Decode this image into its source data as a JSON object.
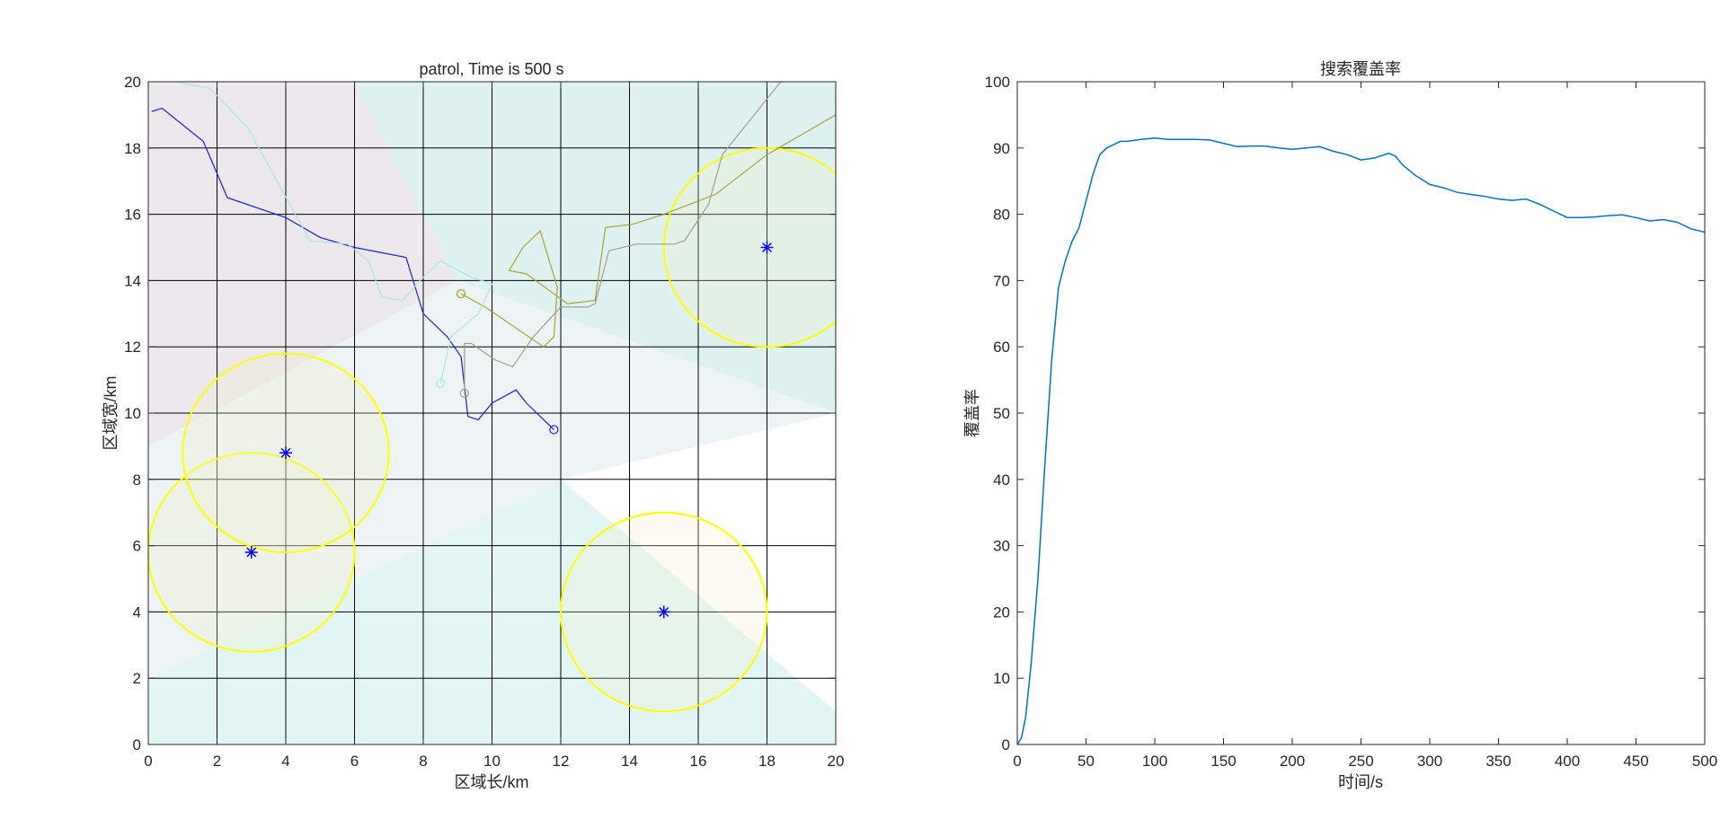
{
  "chart_data": [
    {
      "type": "scatter",
      "title": "patrol, Time is 500 s",
      "xlabel": "区域长/km",
      "ylabel": "区域宽/km",
      "xlim": [
        0,
        20
      ],
      "ylim": [
        0,
        20
      ],
      "xticks": [
        "0",
        "2",
        "4",
        "6",
        "8",
        "10",
        "12",
        "14",
        "16",
        "18",
        "20"
      ],
      "yticks": [
        "0",
        "2",
        "4",
        "6",
        "8",
        "10",
        "12",
        "14",
        "16",
        "18",
        "20"
      ],
      "grid": true,
      "background_regions": [
        {
          "color": "#ece8ec",
          "points": [
            [
              0,
              20
            ],
            [
              6,
              20
            ],
            [
              9,
              14
            ],
            [
              0,
              9
            ]
          ]
        },
        {
          "color": "#dff2f2",
          "points": [
            [
              6,
              20
            ],
            [
              20,
              20
            ],
            [
              20,
              10
            ],
            [
              9,
              14
            ]
          ]
        },
        {
          "color": "#eef4f4",
          "points": [
            [
              0,
              9
            ],
            [
              9,
              14
            ],
            [
              20,
              10
            ],
            [
              12,
              8
            ],
            [
              0,
              2
            ]
          ]
        },
        {
          "color": "#e3f6f6",
          "points": [
            [
              0,
              2
            ],
            [
              12,
              8
            ],
            [
              20,
              1
            ],
            [
              20,
              0
            ],
            [
              0,
              0
            ]
          ]
        }
      ],
      "targets": [
        {
          "x": 3,
          "y": 5.8,
          "r": 3
        },
        {
          "x": 4,
          "y": 8.8,
          "r": 3
        },
        {
          "x": 15,
          "y": 4,
          "r": 3
        },
        {
          "x": 18,
          "y": 15,
          "r": 3
        }
      ],
      "target_color": "#0000ff",
      "circle_color": "#ffff00",
      "series": [
        {
          "color": "#1f1fcf",
          "end_marker": true,
          "x": [
            0.1,
            0.4,
            1.6,
            2.3,
            4,
            5,
            6,
            7.5,
            8,
            8.7,
            9.1,
            9.3,
            9.6,
            10,
            10.7,
            11,
            11.8
          ],
          "y": [
            19.1,
            19.2,
            18.2,
            16.5,
            15.9,
            15.3,
            15,
            14.7,
            13,
            12.3,
            11.7,
            9.9,
            9.8,
            10.3,
            10.7,
            10.3,
            9.5
          ]
        },
        {
          "color": "#a6a03a",
          "end_marker": true,
          "x": [
            20,
            18,
            16.5,
            15,
            14.1,
            13.3,
            13,
            12.2,
            11,
            10.5,
            10.9,
            11.4,
            11.9,
            11.8,
            11.5,
            9.8,
            9.1
          ],
          "y": [
            19,
            17.8,
            16.6,
            16,
            15.7,
            15.6,
            13.4,
            13.3,
            14.2,
            14.3,
            15,
            15.5,
            13.8,
            12.3,
            12,
            13.2,
            13.6
          ]
        },
        {
          "color": "#a69c88",
          "end_marker": true,
          "x": [
            18.4,
            16.7,
            16.3,
            15.6,
            15.3,
            14.2,
            13.4,
            13,
            12.8,
            12,
            11.2,
            10.6,
            10.1,
            9.4,
            9.2,
            9.2
          ],
          "y": [
            20,
            17.8,
            16.3,
            15.2,
            15.1,
            15.1,
            14.9,
            13.3,
            13.2,
            13.2,
            12.3,
            11.4,
            11.6,
            12.1,
            12.1,
            10.6
          ]
        },
        {
          "color": "#a6e6ea",
          "end_marker": true,
          "x": [
            0.8,
            1.8,
            2.9,
            4.7,
            5.8,
            6.4,
            6.8,
            7.4,
            7.9,
            8.5,
            9.4,
            10,
            9.6,
            8.8,
            8.7,
            8.5
          ],
          "y": [
            20,
            19.8,
            18.6,
            15.2,
            15.1,
            14.6,
            13.5,
            13.4,
            14,
            14.6,
            14.1,
            13.9,
            13,
            12.3,
            11.8,
            10.9
          ]
        }
      ]
    },
    {
      "type": "line",
      "title": "搜索覆盖率",
      "xlabel": "时间/s",
      "ylabel": "覆盖率",
      "xlim": [
        0,
        500
      ],
      "ylim": [
        0,
        100
      ],
      "xticks": [
        "0",
        "50",
        "100",
        "150",
        "200",
        "250",
        "300",
        "350",
        "400",
        "450",
        "500"
      ],
      "yticks": [
        "0",
        "10",
        "20",
        "30",
        "40",
        "50",
        "60",
        "70",
        "80",
        "90",
        "100"
      ],
      "grid": false,
      "series": [
        {
          "color": "#0072bd",
          "x": [
            0,
            3,
            6,
            10,
            15,
            20,
            25,
            30,
            35,
            40,
            45,
            50,
            55,
            60,
            65,
            70,
            75,
            80,
            90,
            100,
            110,
            120,
            130,
            140,
            150,
            160,
            170,
            180,
            190,
            200,
            210,
            220,
            230,
            240,
            250,
            260,
            270,
            275,
            280,
            290,
            300,
            310,
            320,
            330,
            340,
            350,
            360,
            370,
            380,
            390,
            400,
            410,
            420,
            430,
            440,
            450,
            460,
            470,
            480,
            490,
            500
          ],
          "y": [
            0,
            1,
            4,
            12,
            25,
            42,
            58,
            69,
            73,
            76,
            78,
            82,
            86,
            89,
            90,
            90.5,
            91,
            91,
            91.3,
            91.5,
            91.3,
            91.3,
            91.3,
            91.2,
            90.7,
            90.2,
            90.3,
            90.3,
            90,
            89.8,
            90,
            90.2,
            89.5,
            89,
            88.2,
            88.5,
            89.2,
            88.8,
            87.5,
            85.8,
            84.5,
            84,
            83.3,
            83,
            82.7,
            82.3,
            82.1,
            82.3,
            81.5,
            80.5,
            79.5,
            79.5,
            79.6,
            79.8,
            79.9,
            79.5,
            79,
            79.2,
            78.8,
            77.8,
            77.3
          ]
        }
      ]
    }
  ]
}
